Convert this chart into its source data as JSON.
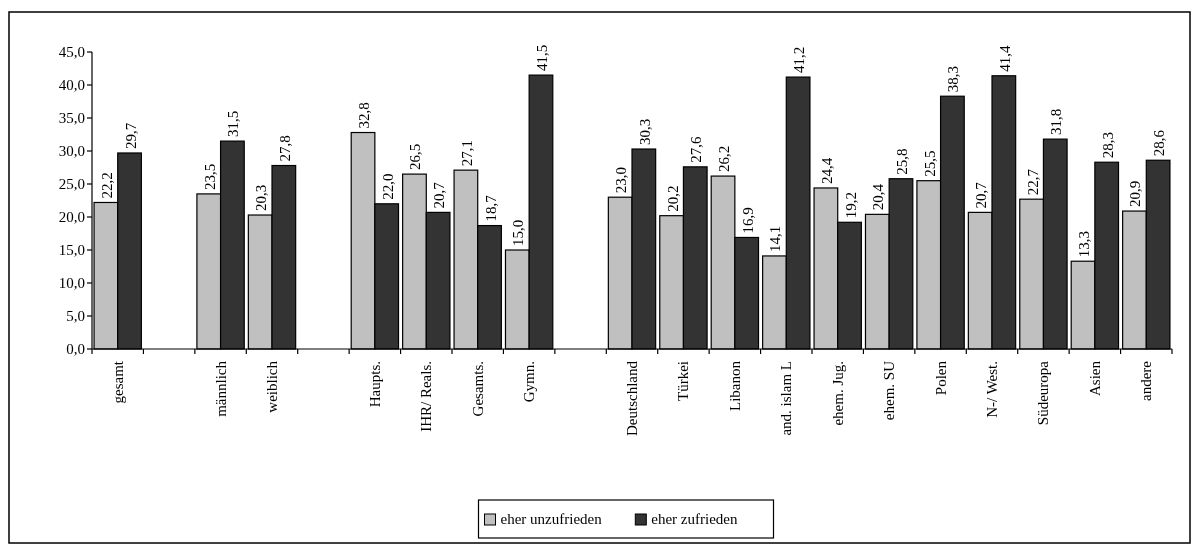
{
  "chart_data": {
    "type": "bar",
    "categories": [
      "gesamt",
      null,
      "männlich",
      "weiblich",
      null,
      "Haupts.",
      "IHR/ Reals.",
      "Gesamts.",
      "Gymn.",
      null,
      "Deutschland",
      "Türkei",
      "Libanon",
      "and. islam L",
      "ehem. Jug.",
      "ehem. SU",
      "Polen",
      "N-/ West.",
      "Südeuropa",
      "Asien",
      "andere"
    ],
    "series": [
      {
        "name": "eher unzufrieden",
        "color": "#c0c0c0",
        "values": [
          22.2,
          null,
          23.5,
          20.3,
          null,
          32.8,
          26.5,
          27.1,
          15.0,
          null,
          23.0,
          20.2,
          26.2,
          14.1,
          24.4,
          20.4,
          25.5,
          20.7,
          22.7,
          13.3,
          20.9
        ],
        "value_labels": [
          "22,2",
          null,
          "23,5",
          "20,3",
          null,
          "32,8",
          "26,5",
          "27,1",
          "15,0",
          null,
          "23,0",
          "20,2",
          "26,2",
          "14,1",
          "24,4",
          "20,4",
          "25,5",
          "20,7",
          "22,7",
          "13,3",
          "20,9"
        ]
      },
      {
        "name": "eher zufrieden",
        "color": "#333333",
        "values": [
          29.7,
          null,
          31.5,
          27.8,
          null,
          22.0,
          20.7,
          18.7,
          41.5,
          null,
          30.3,
          27.6,
          16.9,
          41.2,
          19.2,
          25.8,
          38.3,
          41.4,
          31.8,
          28.3,
          28.6
        ],
        "value_labels": [
          "29,7",
          null,
          "31,5",
          "27,8",
          null,
          "22,0",
          "20,7",
          "18,7",
          "41,5",
          null,
          "30,3",
          "27,6",
          "16,9",
          "41,2",
          "19,2",
          "25,8",
          "38,3",
          "41,4",
          "31,8",
          "28,3",
          "28,6"
        ]
      }
    ],
    "ylim": [
      0,
      45
    ],
    "yticks": [
      {
        "value": 0,
        "label": "0,0"
      },
      {
        "value": 5,
        "label": "5,0"
      },
      {
        "value": 10,
        "label": "10,0"
      },
      {
        "value": 15,
        "label": "15,0"
      },
      {
        "value": 20,
        "label": "20,0"
      },
      {
        "value": 25,
        "label": "25,0"
      },
      {
        "value": 30,
        "label": "30,0"
      },
      {
        "value": 35,
        "label": "35,0"
      },
      {
        "value": 40,
        "label": "40,0"
      },
      {
        "value": 45,
        "label": "45,0"
      }
    ],
    "grid": false,
    "legend": "bottom"
  }
}
